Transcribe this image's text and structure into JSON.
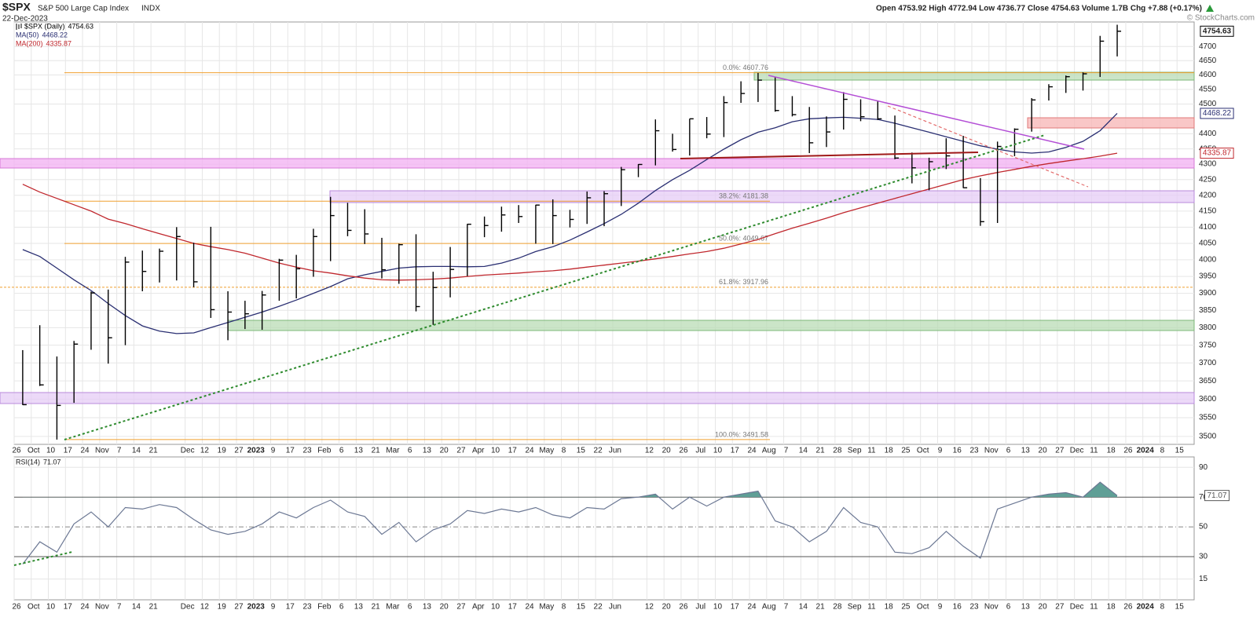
{
  "chart_data": [
    {
      "type": "ohlc",
      "title": "$SPX",
      "subtitle": "S&P 500 Large Cap Index",
      "exchange": "INDX",
      "date": "22-Dec-2023",
      "quote": "Open 4753.92  High 4772.94  Low 4736.77  Close 4754.63  Volume 1.7B  Chg +7.88 (+0.17%)",
      "copyright": "© StockCharts.com",
      "categories": [
        "26",
        "Oct",
        "10",
        "17",
        "24",
        "Nov",
        "7",
        "14",
        "21",
        null,
        "Dec",
        "12",
        "19",
        "27",
        "2023",
        "9",
        "17",
        "23",
        "Feb",
        "6",
        "13",
        "21",
        "Mar",
        "6",
        "13",
        "20",
        "27",
        "Apr",
        "10",
        "17",
        "24",
        "May",
        "8",
        "15",
        "22",
        "Jun",
        null,
        "12",
        "20",
        "26",
        "Jul",
        "10",
        "17",
        "24",
        "Aug",
        "7",
        "14",
        "21",
        "28",
        "Sep",
        "11",
        "18",
        "25",
        "Oct",
        "9",
        "16",
        "23",
        "Nov",
        "6",
        "13",
        "20",
        "27",
        "Dec",
        "11",
        "18",
        "26",
        "2024",
        "8",
        "15"
      ],
      "series": [
        {
          "name": "$SPX (Daily)",
          "color": "#000000",
          "high": [
            3736,
            3807,
            3718,
            3762,
            3905,
            3911,
            4009,
            4028,
            4034,
            4100,
            4052,
            4101,
            3906,
            3878,
            3907,
            4003,
            4015,
            4095,
            4195,
            4176,
            4156,
            4067,
            4049,
            4078,
            3964,
            4039,
            4110,
            4133,
            4164,
            4169,
            4170,
            4187,
            4154,
            4212,
            4213,
            4291,
            4300,
            4448,
            4400,
            4450,
            4456,
            4527,
            4578,
            4607,
            4594,
            4527,
            4490,
            4458,
            4541,
            4516,
            4511,
            4461,
            4338,
            4321,
            4385,
            4393,
            4255,
            4374,
            4418,
            4520,
            4568,
            4598,
            4609,
            4738,
            4778,
            null,
            null,
            null,
            null
          ],
          "low": [
            3584,
            3636,
            3491.58,
            3590,
            3737,
            3698,
            3750,
            3906,
            3932,
            3938,
            3918,
            3828,
            3764,
            3796,
            3794,
            3878,
            3885,
            3949,
            3996,
            4072,
            4048,
            3944,
            3928,
            3847,
            3808,
            3888,
            3951,
            4069,
            4086,
            4113,
            4049,
            4048,
            4099,
            4110,
            4103,
            4166,
            4258,
            4296,
            4341,
            4328,
            4385,
            4389,
            4504,
            4507,
            4474,
            4458,
            4336,
            4356,
            4414,
            4442,
            4446,
            4316,
            4238,
            4216,
            4284,
            4223,
            4104,
            4113,
            4326,
            4407,
            4512,
            4538,
            4546,
            4593,
            4665,
            null,
            null,
            null,
            null
          ],
          "close": [
            3585,
            3639,
            3583,
            3753,
            3901,
            3771,
            3993,
            3965,
            4026,
            4071,
            3934,
            3852,
            3845,
            3840,
            3895,
            3999,
            3973,
            4071,
            4136,
            4090,
            4079,
            3970,
            4046,
            3861,
            3917,
            3971,
            4109,
            4105,
            4138,
            4133,
            4169,
            4136,
            4124,
            4192,
            4205,
            4282,
            4299,
            4410,
            4348,
            4450,
            4399,
            4505,
            4536,
            4582,
            4478,
            4464,
            4370,
            4406,
            4516,
            4457,
            4450,
            4320,
            4288,
            4308,
            4327,
            4224,
            4117,
            4358,
            4415,
            4514,
            4559,
            4594,
            4604,
            4719,
            4754.63,
            null,
            null,
            null,
            null
          ]
        },
        {
          "name": "MA(50)",
          "color": "#2a2f72",
          "values": [
            4031,
            4010,
            3975,
            3940,
            3908,
            3870,
            3835,
            3805,
            3790,
            3783,
            3785,
            3800,
            3815,
            3830,
            3845,
            3862,
            3880,
            3900,
            3920,
            3943,
            3955,
            3965,
            3975,
            3979,
            3980,
            3980,
            3979,
            3980,
            3990,
            4005,
            4025,
            4040,
            4060,
            4085,
            4111,
            4140,
            4175,
            4215,
            4250,
            4280,
            4315,
            4349,
            4380,
            4405,
            4420,
            4440,
            4450,
            4453,
            4455,
            4452,
            4448,
            4435,
            4420,
            4405,
            4390,
            4375,
            4360,
            4349,
            4340,
            4336,
            4340,
            4355,
            4375,
            4410,
            4468.22,
            null,
            null,
            null,
            null
          ]
        },
        {
          "name": "MA(200)",
          "color": "#c0272d",
          "values": [
            4235,
            4210,
            4190,
            4170,
            4150,
            4125,
            4111,
            4095,
            4080,
            4065,
            4050,
            4040,
            4031,
            4020,
            4005,
            3990,
            3978,
            3967,
            3960,
            3952,
            3945,
            3940,
            3939,
            3940,
            3942,
            3945,
            3950,
            3954,
            3957,
            3960,
            3964,
            3967,
            3972,
            3978,
            3984,
            3990,
            3996,
            4003,
            4010,
            4018,
            4025,
            4035,
            4048,
            4062,
            4080,
            4097,
            4112,
            4128,
            4145,
            4160,
            4175,
            4190,
            4205,
            4220,
            4235,
            4250,
            4262,
            4273,
            4283,
            4293,
            4302,
            4310,
            4318,
            4326,
            4335.87,
            null,
            null,
            null,
            null
          ]
        }
      ],
      "ylim": [
        3479,
        4788
      ],
      "log_scale": true,
      "grid": true,
      "yticks": [
        3500,
        3550,
        3600,
        3650,
        3700,
        3750,
        3800,
        3850,
        3900,
        3950,
        4000,
        4050,
        4100,
        4150,
        4200,
        4250,
        4300,
        4350,
        4400,
        4500,
        4550,
        4600,
        4650,
        4700
      ],
      "fib_color": "#f0a030",
      "fib_levels": [
        {
          "value": 4607.76,
          "label": "0.0%: 4607.76"
        },
        {
          "value": 4181.38,
          "label": "38.2%: 4181.38"
        },
        {
          "value": 4049.67,
          "label": "50.0%: 4049.67"
        },
        {
          "value": 3917.96,
          "label": "61.8%: 3917.96"
        },
        {
          "value": 3491.58,
          "label": "100.0%: 3491.58"
        }
      ]
    },
    {
      "type": "line",
      "categories": [
        "26",
        "Oct",
        "10",
        "17",
        "24",
        "Nov",
        "7",
        "14",
        "21",
        null,
        "Dec",
        "12",
        "19",
        "27",
        "2023",
        "9",
        "17",
        "23",
        "Feb",
        "6",
        "13",
        "21",
        "Mar",
        "6",
        "13",
        "20",
        "27",
        "Apr",
        "10",
        "17",
        "24",
        "May",
        "8",
        "15",
        "22",
        "Jun",
        null,
        "12",
        "20",
        "26",
        "Jul",
        "10",
        "17",
        "24",
        "Aug",
        "7",
        "14",
        "21",
        "28",
        "Sep",
        "11",
        "18",
        "25",
        "Oct",
        "9",
        "16",
        "23",
        "Nov",
        "6",
        "13",
        "20",
        "27",
        "Dec",
        "11",
        "18",
        "26",
        "2024",
        "8",
        "15"
      ],
      "series": [
        {
          "name": "RSI(14)",
          "color": "#6c7894",
          "fill_color": "#5f9f96",
          "values": [
            25,
            40,
            33,
            52,
            60,
            50,
            63,
            62,
            65,
            63,
            55,
            48,
            45,
            47,
            52,
            60,
            56,
            63,
            68,
            60,
            57,
            45,
            53,
            40,
            48,
            52,
            61,
            59,
            62,
            60,
            63,
            58,
            56,
            63,
            62,
            69,
            70,
            72,
            62,
            70,
            64,
            70,
            72,
            74,
            54,
            50,
            40,
            47,
            63,
            53,
            50,
            33,
            32,
            36,
            47,
            37,
            29,
            62,
            66,
            70,
            72,
            73,
            70,
            80,
            71.07,
            null,
            null,
            null,
            null
          ]
        }
      ],
      "ylim": [
        1,
        97
      ],
      "yticks": [
        15,
        30,
        50,
        70,
        90
      ],
      "grid": true
    }
  ]
}
